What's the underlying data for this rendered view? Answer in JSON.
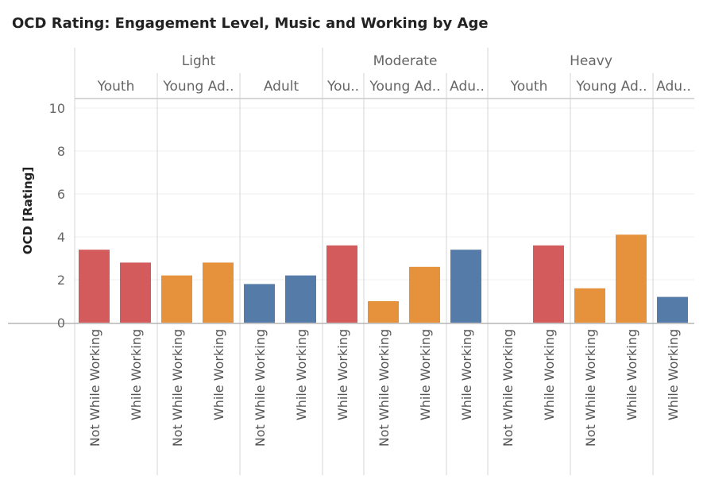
{
  "chart_data": {
    "type": "bar",
    "title": "OCD Rating: Engagement Level, Music and Working by Age",
    "ylabel": "OCD [Rating]",
    "xlabel": "",
    "ylim": [
      0,
      10
    ],
    "y_ticks": [
      "0",
      "2",
      "4",
      "6",
      "8",
      "10"
    ],
    "grid": "horizontal",
    "colors": {
      "Youth": "#d35b5b",
      "Young Adult": "#e6913b",
      "Adult": "#557ba8"
    },
    "groups": [
      {
        "label": "Light",
        "subgroups": [
          {
            "label": "Youth",
            "age": "Youth",
            "bars": [
              {
                "category": "Not While Working",
                "value": 3.4
              },
              {
                "category": "While Working",
                "value": 2.8
              }
            ]
          },
          {
            "label": "Young Ad..",
            "age": "Young Adult",
            "bars": [
              {
                "category": "Not While Working",
                "value": 2.2
              },
              {
                "category": "While Working",
                "value": 2.8
              }
            ]
          },
          {
            "label": "Adult",
            "age": "Adult",
            "bars": [
              {
                "category": "Not While Working",
                "value": 1.8
              },
              {
                "category": "While Working",
                "value": 2.2
              }
            ]
          }
        ]
      },
      {
        "label": "Moderate",
        "subgroups": [
          {
            "label": "You..",
            "age": "Youth",
            "bars": [
              {
                "category": "While Working",
                "value": 3.6
              }
            ]
          },
          {
            "label": "Young Ad..",
            "age": "Young Adult",
            "bars": [
              {
                "category": "Not While Working",
                "value": 1.0
              },
              {
                "category": "While Working",
                "value": 2.6
              }
            ]
          },
          {
            "label": "Adu..",
            "age": "Adult",
            "bars": [
              {
                "category": "While Working",
                "value": 3.4
              }
            ]
          }
        ]
      },
      {
        "label": "Heavy",
        "subgroups": [
          {
            "label": "Youth",
            "age": "Youth",
            "bars": [
              {
                "category": "Not While Working",
                "value": 0
              },
              {
                "category": "While Working",
                "value": 3.6
              }
            ]
          },
          {
            "label": "Young Ad..",
            "age": "Young Adult",
            "bars": [
              {
                "category": "Not While Working",
                "value": 1.6
              },
              {
                "category": "While Working",
                "value": 4.1
              }
            ]
          },
          {
            "label": "Adu..",
            "age": "Adult",
            "bars": [
              {
                "category": "While Working",
                "value": 1.2
              }
            ]
          }
        ]
      }
    ]
  }
}
